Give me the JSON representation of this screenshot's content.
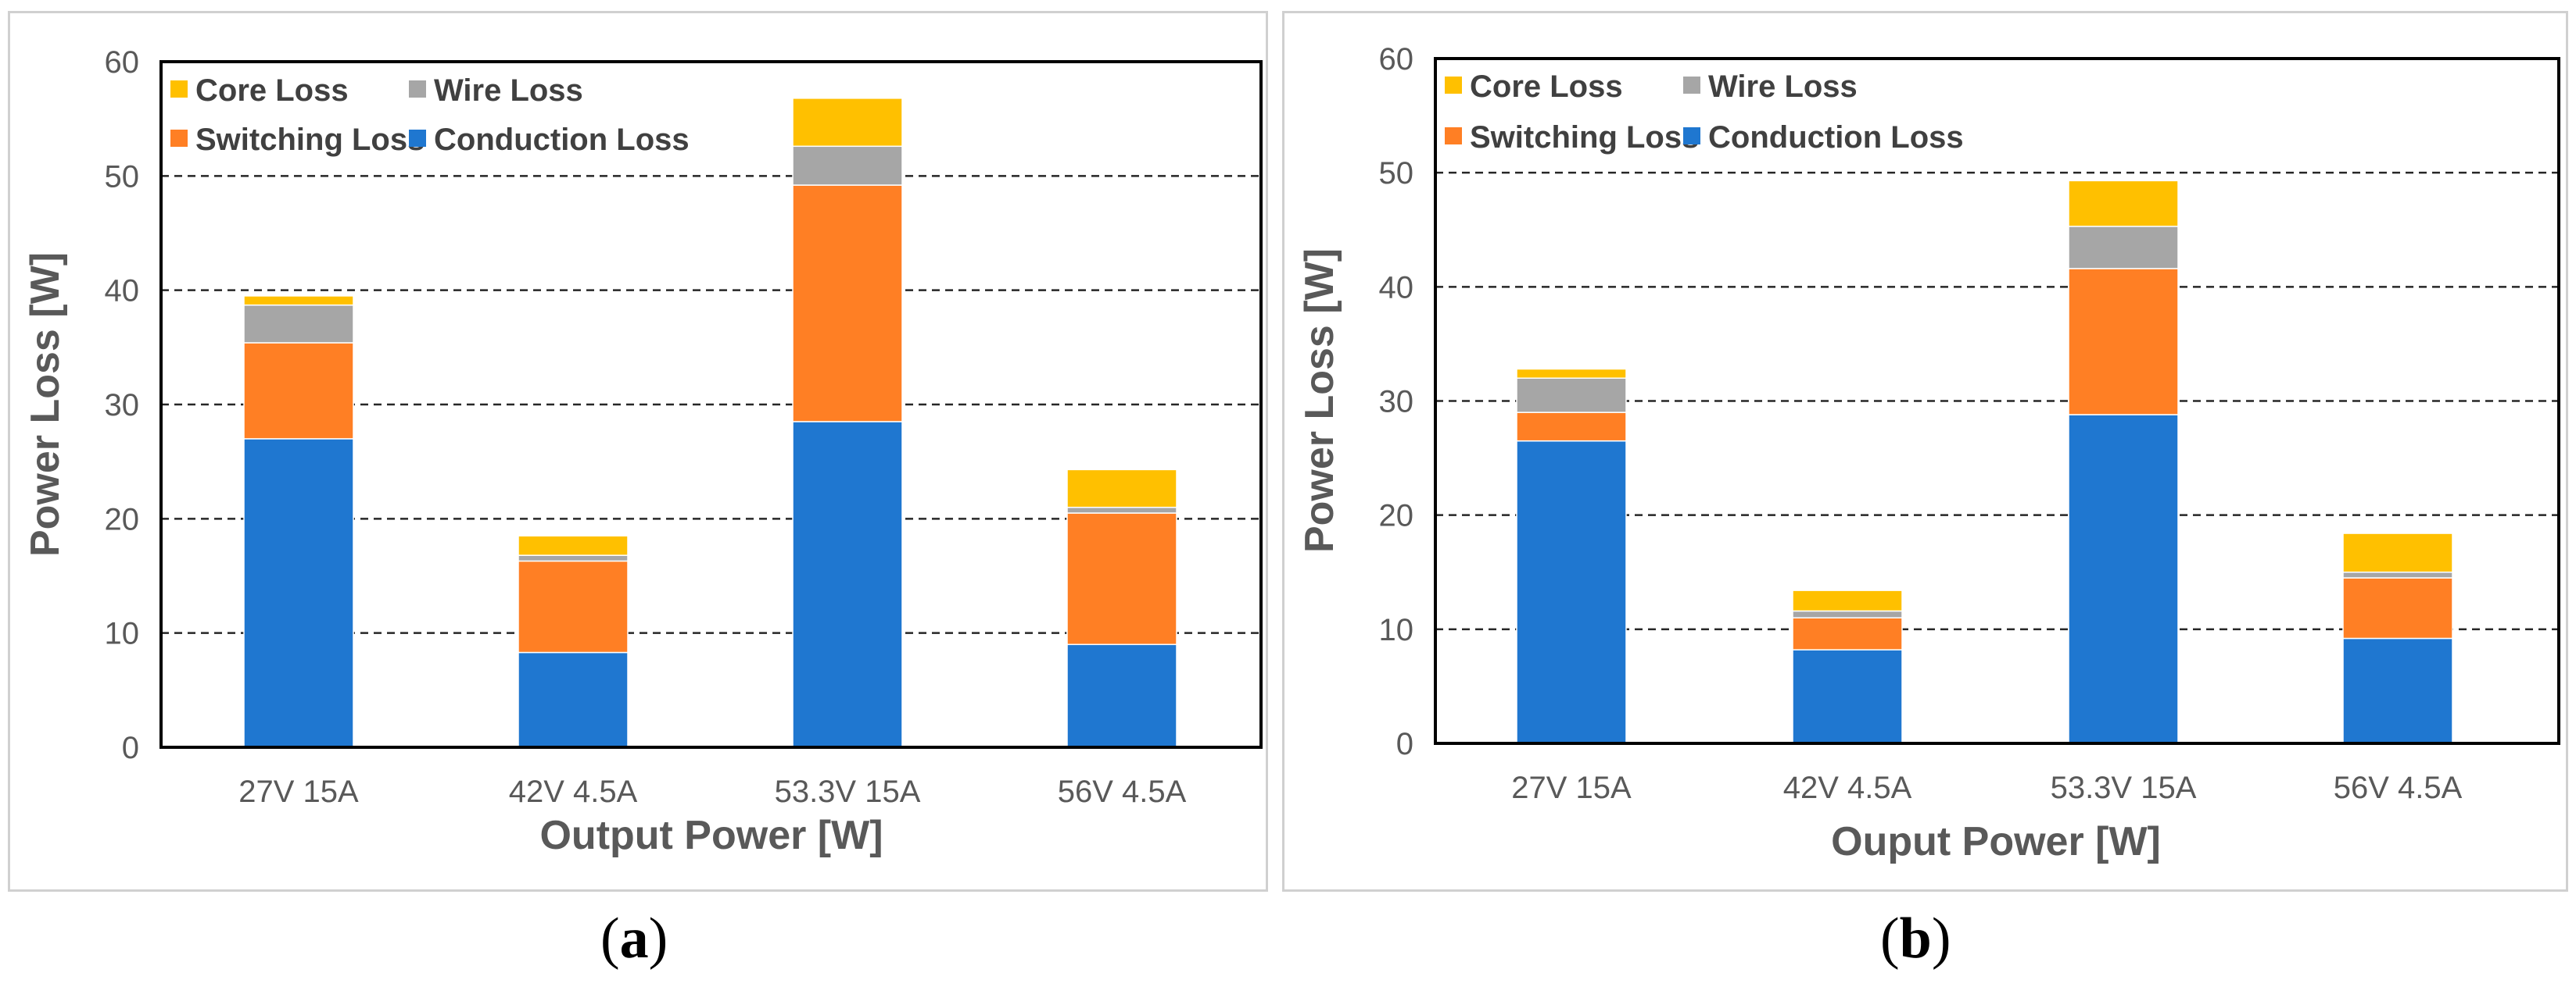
{
  "chart_data": [
    {
      "type": "bar",
      "stacked": true,
      "panel_label": "a",
      "categories": [
        "27V 15A",
        "42V 4.5A",
        "53.3V 15A",
        "56V 4.5A"
      ],
      "series": [
        {
          "name": "Conduction Loss",
          "color": "#1F77D0",
          "values": [
            27.0,
            8.3,
            28.5,
            9.0
          ]
        },
        {
          "name": "Switching Loss",
          "color": "#FF7F24",
          "values": [
            8.4,
            8.0,
            20.7,
            11.5
          ]
        },
        {
          "name": "Wire Loss",
          "color": "#A6A6A6",
          "values": [
            3.3,
            0.5,
            3.4,
            0.5
          ]
        },
        {
          "name": "Core Loss",
          "color": "#FFC000",
          "values": [
            0.8,
            1.7,
            4.2,
            3.3
          ]
        }
      ],
      "legend_order": [
        "Core Loss",
        "Wire Loss",
        "Switching Loss",
        "Conduction Loss"
      ],
      "xlabel": "Output Power [W]",
      "ylabel": "Power Loss [W]",
      "ylim": [
        0,
        60
      ],
      "yticks": [
        "0",
        "10",
        "20",
        "30",
        "40",
        "50",
        "60"
      ],
      "grid": "dashed horizontal",
      "legend_position": "top-left"
    },
    {
      "type": "bar",
      "stacked": true,
      "panel_label": "b",
      "categories": [
        "27V 15A",
        "42V 4.5A",
        "53.3V 15A",
        "56V 4.5A"
      ],
      "series": [
        {
          "name": "Conduction Loss",
          "color": "#1F77D0",
          "values": [
            26.5,
            8.2,
            28.8,
            9.2
          ]
        },
        {
          "name": "Switching Loss",
          "color": "#FF7F24",
          "values": [
            2.5,
            2.8,
            12.8,
            5.3
          ]
        },
        {
          "name": "Wire Loss",
          "color": "#A6A6A6",
          "values": [
            3.0,
            0.6,
            3.7,
            0.5
          ]
        },
        {
          "name": "Core Loss",
          "color": "#FFC000",
          "values": [
            0.8,
            1.8,
            4.0,
            3.4
          ]
        }
      ],
      "legend_order": [
        "Core Loss",
        "Wire Loss",
        "Switching Loss",
        "Conduction Loss"
      ],
      "xlabel": "Ouput Power [W]",
      "ylabel": "Power Loss [W]",
      "ylim": [
        0,
        60
      ],
      "yticks": [
        "0",
        "10",
        "20",
        "30",
        "40",
        "50",
        "60"
      ],
      "grid": "dashed horizontal",
      "legend_position": "top-left"
    }
  ],
  "captions": [
    {
      "open": "(",
      "label": "a",
      "close": ")"
    },
    {
      "open": "(",
      "label": "b",
      "close": ")"
    }
  ]
}
